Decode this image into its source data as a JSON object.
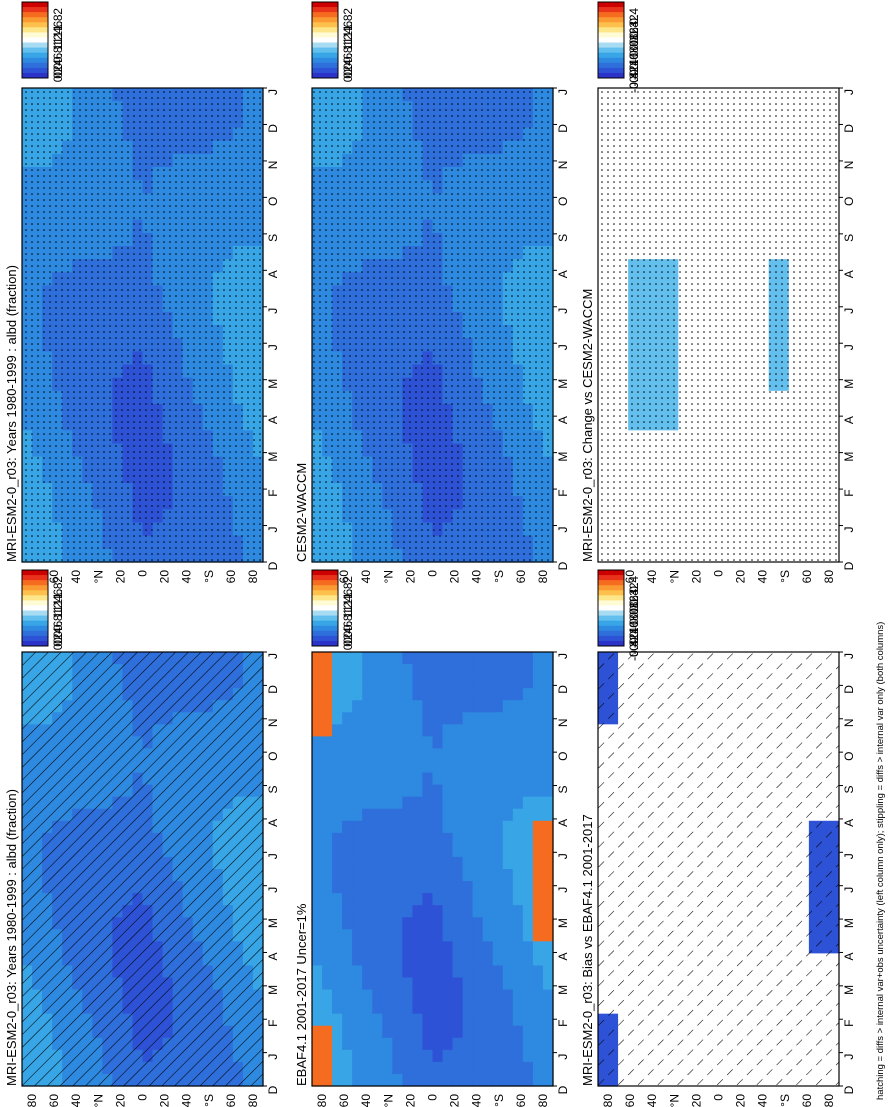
{
  "footnote": "hatching = diffs > internal var+obs uncertainty (left column only); stippling = diffs > internal var only (both columns)",
  "months": [
    "D",
    "J",
    "F",
    "M",
    "A",
    "M",
    "J",
    "J",
    "A",
    "S",
    "O",
    "N",
    "D",
    "J"
  ],
  "lat_ticks": [
    "80",
    "60",
    "40",
    "°N",
    "20",
    "0",
    "20",
    "40",
    "°S",
    "60",
    "80"
  ],
  "colorbars": {
    "absolute": {
      "labels": [
        "2",
        "1.8",
        "1.6",
        "1.4",
        "1.2",
        "1",
        "0.8",
        "0.6",
        "0.4",
        "0.2",
        "0"
      ],
      "colors": [
        "#cc0000",
        "#e8321a",
        "#f56b1f",
        "#fa9a32",
        "#fdc04c",
        "#fde68a",
        "#fffbd5",
        "#ffffff",
        "#a7dcf3",
        "#63c0ee",
        "#38a6e6",
        "#2e8ae0",
        "#2f6fdc",
        "#2e52d6",
        "#2c33c8"
      ]
    },
    "difference": {
      "labels": [
        "0.4",
        "0.32",
        "0.24",
        "0.16",
        "0.08",
        "0",
        "-0.08",
        "-0.16",
        "-0.24",
        "-0.32",
        "-0.4"
      ],
      "colors": [
        "#cc0000",
        "#e8321a",
        "#f56b1f",
        "#fa9a32",
        "#fdc04c",
        "#fde68a",
        "#fffbd5",
        "#ffffff",
        "#a7dcf3",
        "#63c0ee",
        "#38a6e6",
        "#2e8ae0",
        "#2f6fdc",
        "#2e52d6",
        "#2c33c8"
      ]
    }
  },
  "panels": [
    {
      "title": "MRI-ESM2-0_r03: Years 1980-1999 : albd (fraction)",
      "pattern": "hatch",
      "style": "model"
    },
    {
      "title": "MRI-ESM2-0_r03: Years 1980-1999 : albd (fraction)",
      "pattern": "stipple",
      "style": "model"
    },
    {
      "title": "EBAF4.1 2001-2017 Uncer=1%",
      "pattern": "none",
      "style": "obs"
    },
    {
      "title": "CESM2-WACCM",
      "pattern": "stipple",
      "style": "model"
    },
    {
      "title": "MRI-ESM2-0_r03: Bias vs EBAF4.1 2001-2017",
      "pattern": "hatch-sparse",
      "style": "bias"
    },
    {
      "title": "MRI-ESM2-0_r03: Change vs CESM2-WACCM",
      "pattern": "stipple",
      "style": "change"
    }
  ],
  "chart_data": [
    {
      "type": "heatmap",
      "title": "MRI-ESM2-0_r03: Years 1980-1999 : albd (fraction)",
      "x": [
        "D",
        "J",
        "F",
        "M",
        "A",
        "M",
        "J",
        "J",
        "A",
        "S",
        "O",
        "N",
        "D",
        "J"
      ],
      "y_ticks": [
        80,
        60,
        40,
        20,
        0,
        -20,
        -40,
        -60,
        -80
      ],
      "zlim": [
        0,
        2
      ],
      "colorbar": [
        "2",
        "1.8",
        "1.6",
        "1.4",
        "1.2",
        "1",
        "0.8",
        "0.6",
        "0.4",
        "0.2",
        "0"
      ]
    },
    {
      "type": "heatmap",
      "title": "MRI-ESM2-0_r03: Years 1980-1999 : albd (fraction)",
      "x": [
        "D",
        "J",
        "F",
        "M",
        "A",
        "M",
        "J",
        "J",
        "A",
        "S",
        "O",
        "N",
        "D",
        "J"
      ],
      "y_ticks": [
        80,
        60,
        40,
        20,
        0,
        -20,
        -40,
        -60,
        -80
      ],
      "zlim": [
        0,
        2
      ],
      "colorbar": [
        "2",
        "1.8",
        "1.6",
        "1.4",
        "1.2",
        "1",
        "0.8",
        "0.6",
        "0.4",
        "0.2",
        "0"
      ]
    },
    {
      "type": "heatmap",
      "title": "EBAF4.1 2001-2017 Uncer=1%",
      "x": [
        "D",
        "J",
        "F",
        "M",
        "A",
        "M",
        "J",
        "J",
        "A",
        "S",
        "O",
        "N",
        "D",
        "J"
      ],
      "y_ticks": [
        80,
        60,
        40,
        20,
        0,
        -20,
        -40,
        -60,
        -80
      ],
      "zlim": [
        0,
        2
      ],
      "colorbar": [
        "2",
        "1.8",
        "1.6",
        "1.4",
        "1.2",
        "1",
        "0.8",
        "0.6",
        "0.4",
        "0.2",
        "0"
      ]
    },
    {
      "type": "heatmap",
      "title": "CESM2-WACCM",
      "x": [
        "D",
        "J",
        "F",
        "M",
        "A",
        "M",
        "J",
        "J",
        "A",
        "S",
        "O",
        "N",
        "D",
        "J"
      ],
      "y_ticks": [
        80,
        60,
        40,
        20,
        0,
        -20,
        -40,
        -60,
        -80
      ],
      "zlim": [
        0,
        2
      ],
      "colorbar": [
        "2",
        "1.8",
        "1.6",
        "1.4",
        "1.2",
        "1",
        "0.8",
        "0.6",
        "0.4",
        "0.2",
        "0"
      ]
    },
    {
      "type": "heatmap",
      "title": "MRI-ESM2-0_r03: Bias vs EBAF4.1 2001-2017",
      "x": [
        "D",
        "J",
        "F",
        "M",
        "A",
        "M",
        "J",
        "J",
        "A",
        "S",
        "O",
        "N",
        "D",
        "J"
      ],
      "y_ticks": [
        80,
        60,
        40,
        20,
        0,
        -20,
        -40,
        -60,
        -80
      ],
      "zlim": [
        -0.4,
        0.4
      ],
      "colorbar": [
        "0.4",
        "0.32",
        "0.24",
        "0.16",
        "0.08",
        "0",
        "-0.08",
        "-0.16",
        "-0.24",
        "-0.32",
        "-0.4"
      ]
    },
    {
      "type": "heatmap",
      "title": "MRI-ESM2-0_r03: Change vs CESM2-WACCM",
      "x": [
        "D",
        "J",
        "F",
        "M",
        "A",
        "M",
        "J",
        "J",
        "A",
        "S",
        "O",
        "N",
        "D",
        "J"
      ],
      "y_ticks": [
        80,
        60,
        40,
        20,
        0,
        -20,
        -40,
        -60,
        -80
      ],
      "zlim": [
        -0.4,
        0.4
      ],
      "colorbar": [
        "0.4",
        "0.32",
        "0.24",
        "0.16",
        "0.08",
        "0",
        "-0.08",
        "-0.16",
        "-0.24",
        "-0.32",
        "-0.4"
      ]
    }
  ]
}
